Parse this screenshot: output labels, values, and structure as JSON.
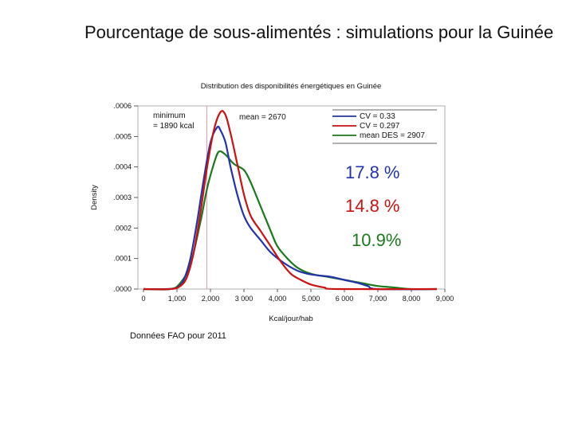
{
  "slide": {
    "title": "Pourcentage de sous-alimentés : simulations pour la Guinée",
    "source_note": "Données FAO pour 2011"
  },
  "chart_data": {
    "type": "line",
    "title": "Distribution des disponibilités énergétiques en Guinée",
    "xlabel": "Kcal/jour/hab",
    "ylabel": "Density",
    "xlim": [
      0,
      9000
    ],
    "ylim": [
      0,
      0.0006
    ],
    "x_ticks": [
      {
        "value": 0,
        "label": "0"
      },
      {
        "value": 1000,
        "label": "1,000"
      },
      {
        "value": 2000,
        "label": "2,000"
      },
      {
        "value": 3000,
        "label": "3 000"
      },
      {
        "value": 4000,
        "label": "4,000"
      },
      {
        "value": 5000,
        "label": "5,000"
      },
      {
        "value": 6000,
        "label": "6 000"
      },
      {
        "value": 7000,
        "label": "7,000"
      },
      {
        "value": 8000,
        "label": "8,000"
      },
      {
        "value": 9000,
        "label": "9,000"
      }
    ],
    "y_ticks": [
      {
        "value": 0,
        "label": ".0000"
      },
      {
        "value": 0.0001,
        "label": ".0001"
      },
      {
        "value": 0.0002,
        "label": ".0002"
      },
      {
        "value": 0.0003,
        "label": ".0003"
      },
      {
        "value": 0.0004,
        "label": ".0004"
      },
      {
        "value": 0.0005,
        "label": ".0005"
      },
      {
        "value": 0.0006,
        "label": ".0006"
      }
    ],
    "annotations": {
      "minimum_line1": "minimum",
      "minimum_line2": "= 1890 kcal",
      "mean": "mean = 2670"
    },
    "minimum_line_x": 1890,
    "series": [
      {
        "name": "CV = 0.33",
        "color": "#2233aa",
        "result": "17.8 %",
        "x": [
          700,
          1000,
          1200,
          1400,
          1600,
          1800,
          2000,
          2200,
          2300,
          2450,
          2600,
          2800,
          3000,
          3200,
          3500,
          3800,
          4200,
          4600,
          4900,
          5200,
          5600,
          6000,
          6400,
          6700,
          7000
        ],
        "y": [
          0.0,
          5e-06,
          3e-05,
          0.0001,
          0.00022,
          0.00036,
          0.00048,
          0.00053,
          0.00052,
          0.00048,
          0.0004,
          0.00031,
          0.00024,
          0.0002,
          0.00016,
          0.00012,
          8.5e-05,
          6e-05,
          5e-05,
          4.5e-05,
          4e-05,
          3e-05,
          2e-05,
          1e-05,
          0.0
        ]
      },
      {
        "name": "CV = 0.297",
        "color": "#cc1111",
        "result": "14.8 %",
        "x": [
          800,
          1100,
          1300,
          1500,
          1700,
          1900,
          2100,
          2300,
          2450,
          2600,
          2800,
          3000,
          3200,
          3500,
          3800,
          4100,
          4400,
          4700,
          5000,
          5400,
          5800
        ],
        "y": [
          0.0,
          1e-05,
          4e-05,
          0.00012,
          0.00025,
          0.0004,
          0.00052,
          0.00058,
          0.00057,
          0.00051,
          0.00041,
          0.00031,
          0.00024,
          0.00019,
          0.00014,
          9e-05,
          5e-05,
          3e-05,
          1.5e-05,
          5e-06,
          0.0
        ]
      },
      {
        "name": "mean DES = 2907",
        "color": "#1a7a1a",
        "result": "10.9%",
        "x": [
          800,
          1100,
          1400,
          1700,
          1900,
          2100,
          2250,
          2450,
          2700,
          3000,
          3200,
          3500,
          3800,
          4000,
          4300,
          4600,
          5000,
          5500,
          6000,
          6500,
          7000,
          7500,
          8000
        ],
        "y": [
          0.0,
          2e-05,
          8e-05,
          0.00022,
          0.00033,
          0.00041,
          0.00045,
          0.00044,
          0.00041,
          0.00039,
          0.00035,
          0.00027,
          0.00019,
          0.00014,
          0.0001,
          7e-05,
          5e-05,
          4e-05,
          3e-05,
          2e-05,
          1e-05,
          5e-06,
          0.0
        ]
      }
    ]
  }
}
